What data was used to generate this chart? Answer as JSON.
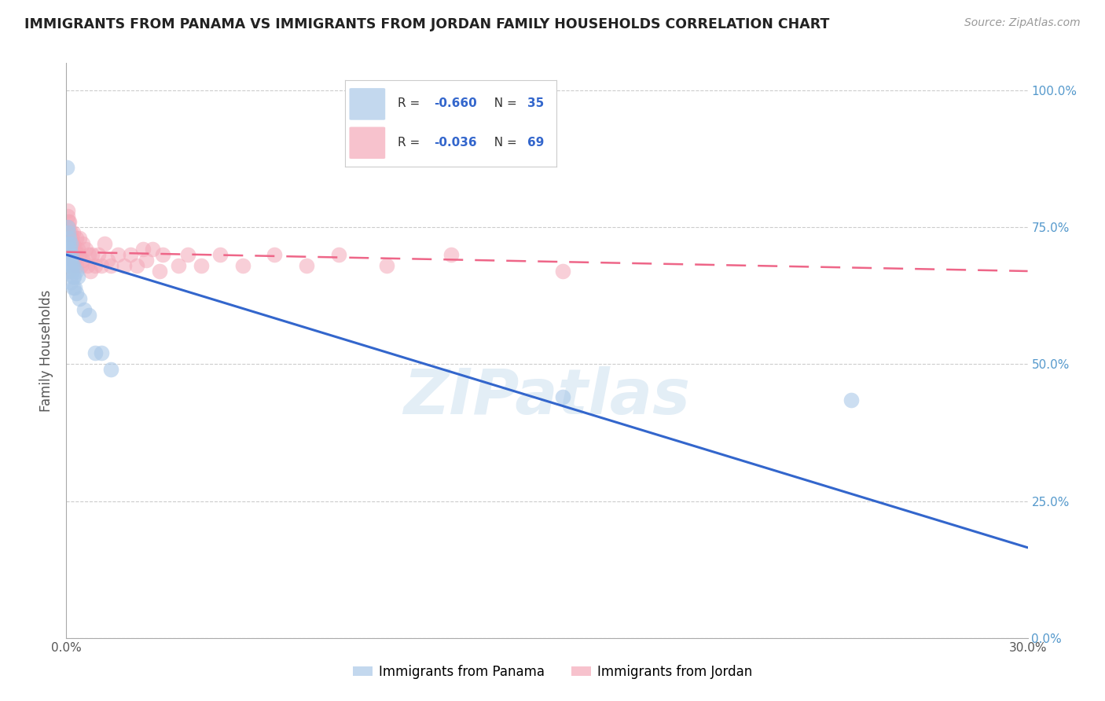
{
  "title": "IMMIGRANTS FROM PANAMA VS IMMIGRANTS FROM JORDAN FAMILY HOUSEHOLDS CORRELATION CHART",
  "source": "Source: ZipAtlas.com",
  "ylabel": "Family Households",
  "yticks": [
    "0.0%",
    "25.0%",
    "50.0%",
    "75.0%",
    "100.0%"
  ],
  "ytick_vals": [
    0.0,
    0.25,
    0.5,
    0.75,
    1.0
  ],
  "panama_color": "#aac8e8",
  "jordan_color": "#f4a8b8",
  "panama_line_color": "#3366cc",
  "jordan_line_color": "#ee6688",
  "watermark": "ZIPatlas",
  "panama_R": -0.66,
  "panama_N": 35,
  "jordan_R": -0.036,
  "jordan_N": 69,
  "panama_line_x0": 0.0,
  "panama_line_y0": 0.7,
  "panama_line_x1": 0.3,
  "panama_line_y1": 0.165,
  "jordan_line_x0": 0.0,
  "jordan_line_y0": 0.705,
  "jordan_line_x1": 0.3,
  "jordan_line_y1": 0.67,
  "panama_points_x": [
    0.0002,
    0.0003,
    0.0004,
    0.0005,
    0.0005,
    0.0006,
    0.0007,
    0.0008,
    0.0009,
    0.001,
    0.001,
    0.0012,
    0.0013,
    0.0014,
    0.0015,
    0.0015,
    0.0016,
    0.0017,
    0.0018,
    0.002,
    0.002,
    0.0022,
    0.0023,
    0.0025,
    0.003,
    0.003,
    0.0035,
    0.004,
    0.0055,
    0.007,
    0.009,
    0.011,
    0.014,
    0.155,
    0.245
  ],
  "panama_points_y": [
    0.86,
    0.72,
    0.71,
    0.69,
    0.75,
    0.72,
    0.74,
    0.7,
    0.69,
    0.68,
    0.73,
    0.71,
    0.69,
    0.68,
    0.72,
    0.65,
    0.7,
    0.67,
    0.68,
    0.64,
    0.66,
    0.68,
    0.66,
    0.64,
    0.67,
    0.63,
    0.66,
    0.62,
    0.6,
    0.59,
    0.52,
    0.52,
    0.49,
    0.44,
    0.435
  ],
  "jordan_points_x": [
    0.0001,
    0.0002,
    0.0003,
    0.0003,
    0.0004,
    0.0005,
    0.0005,
    0.0006,
    0.0006,
    0.0007,
    0.0007,
    0.0008,
    0.0008,
    0.0009,
    0.001,
    0.001,
    0.001,
    0.0012,
    0.0013,
    0.0014,
    0.0015,
    0.0016,
    0.0017,
    0.0018,
    0.002,
    0.002,
    0.0022,
    0.0023,
    0.0025,
    0.003,
    0.003,
    0.0032,
    0.0035,
    0.004,
    0.0042,
    0.0045,
    0.005,
    0.005,
    0.006,
    0.0065,
    0.007,
    0.0075,
    0.008,
    0.009,
    0.01,
    0.011,
    0.012,
    0.013,
    0.014,
    0.016,
    0.018,
    0.02,
    0.022,
    0.024,
    0.025,
    0.027,
    0.029,
    0.03,
    0.035,
    0.038,
    0.042,
    0.048,
    0.055,
    0.065,
    0.075,
    0.085,
    0.1,
    0.12,
    0.155
  ],
  "jordan_points_y": [
    0.7,
    0.74,
    0.77,
    0.72,
    0.75,
    0.78,
    0.73,
    0.76,
    0.71,
    0.75,
    0.7,
    0.76,
    0.72,
    0.71,
    0.74,
    0.7,
    0.67,
    0.72,
    0.7,
    0.74,
    0.72,
    0.71,
    0.73,
    0.69,
    0.74,
    0.71,
    0.72,
    0.69,
    0.71,
    0.73,
    0.7,
    0.68,
    0.71,
    0.73,
    0.7,
    0.68,
    0.72,
    0.69,
    0.71,
    0.68,
    0.7,
    0.67,
    0.7,
    0.68,
    0.7,
    0.68,
    0.72,
    0.69,
    0.68,
    0.7,
    0.68,
    0.7,
    0.68,
    0.71,
    0.69,
    0.71,
    0.67,
    0.7,
    0.68,
    0.7,
    0.68,
    0.7,
    0.68,
    0.7,
    0.68,
    0.7,
    0.68,
    0.7,
    0.67
  ],
  "xlim": [
    0.0,
    0.3
  ],
  "ylim": [
    0.0,
    1.05
  ],
  "figsize": [
    14.06,
    8.92
  ],
  "dpi": 100
}
